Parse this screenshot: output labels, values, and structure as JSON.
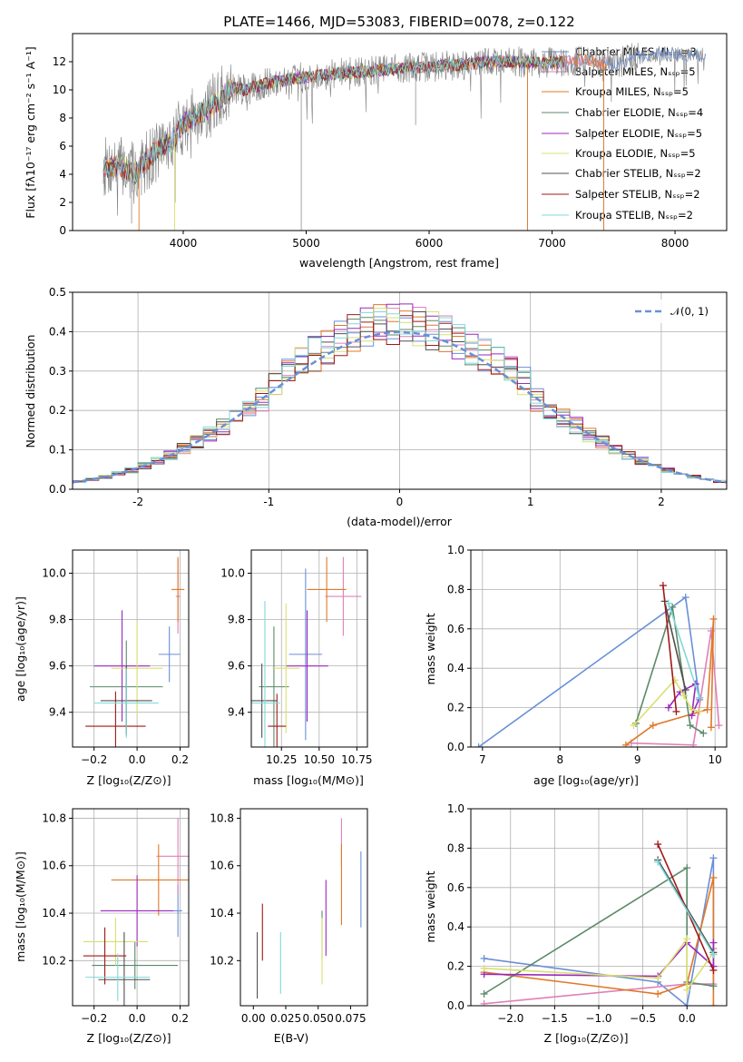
{
  "colors": {
    "chabrier_miles": "#6a8fd8",
    "salpeter_miles": "#e080b8",
    "kroupa_miles": "#e07828",
    "chabrier_elodie": "#5a8a68",
    "salpeter_elodie": "#9a28c0",
    "kroupa_elodie": "#d8e070",
    "chabrier_stelib": "#505050",
    "salpeter_stelib": "#a01818",
    "kroupa_stelib": "#80d8d8",
    "spectrum_data": "#808080",
    "normal_curve": "#6a8fd8",
    "grid": "#b0b0b0"
  },
  "chart_data": [
    {
      "id": "spectrum",
      "type": "line",
      "title": "PLATE=1466, MJD=53083, FIBERID=0078, z=0.122",
      "xlabel": "wavelength [Angstrom, rest frame]",
      "ylabel": "Flux [fλ10⁻¹⁷ erg cm⁻² s⁻¹ A⁻¹]",
      "xlim": [
        3100,
        8420
      ],
      "ylim": [
        0,
        14
      ],
      "xticks": [
        4000,
        5000,
        6000,
        7000,
        8000
      ],
      "yticks": [
        0,
        2,
        4,
        6,
        8,
        10,
        12
      ],
      "grid": false,
      "legend_placement": "right",
      "legend": [
        "Chabrier MILES, Nₛₛₚ=3",
        "Salpeter MILES, Nₛₛₚ=5",
        "Kroupa MILES, Nₛₛₚ=5",
        "Chabrier ELODIE, Nₛₛₚ=4",
        "Salpeter ELODIE, Nₛₛₚ=5",
        "Kroupa ELODIE, Nₛₛₚ=5",
        "Chabrier STELIB, Nₛₛₚ=2",
        "Salpeter STELIB, Nₛₛₚ=2",
        "Kroupa STELIB, Nₛₛₚ=2"
      ],
      "continuum": {
        "x": [
          3350,
          3500,
          3600,
          3700,
          3800,
          3900,
          4000,
          4100,
          4200,
          4300,
          4400,
          4500,
          4700,
          4900,
          5100,
          5300,
          5500,
          5700,
          5900,
          6100,
          6300,
          6500,
          6700,
          6900,
          7100,
          7300,
          7500,
          7700,
          7900,
          8100,
          8250
        ],
        "y": [
          4.5,
          4.6,
          4.0,
          5.0,
          5.8,
          6.3,
          7.6,
          8.2,
          8.6,
          9.4,
          10.1,
          10.0,
          10.5,
          10.8,
          11.0,
          11.2,
          11.3,
          11.5,
          11.6,
          11.7,
          11.8,
          12.0,
          12.0,
          11.9,
          12.0,
          12.1,
          11.8,
          12.4,
          12.6,
          12.4,
          12.5
        ]
      },
      "absorption_lines": [
        {
          "x": 3580,
          "depth_to": 0.5
        },
        {
          "x": 3660,
          "depth_to": 2.5
        },
        {
          "x": 3934,
          "depth_to": 2.0
        },
        {
          "x": 4960,
          "depth_to": 0.0
        },
        {
          "x": 5890,
          "depth_to": 7.5
        },
        {
          "x": 6800,
          "depth_to": 0.0
        },
        {
          "x": 7420,
          "depth_to": 0.0
        }
      ]
    },
    {
      "id": "residuals",
      "type": "step",
      "xlabel": "(data-model)/error",
      "ylabel": "Normed distribution",
      "xlim": [
        -2.5,
        2.5
      ],
      "ylim": [
        0,
        0.5
      ],
      "xticks": [
        -2,
        -1,
        0,
        1,
        2
      ],
      "yticks": [
        0.0,
        0.1,
        0.2,
        0.3,
        0.4,
        0.5
      ],
      "grid": true,
      "legend": [
        "𝒩(0, 1)"
      ],
      "legend_placement": "top-right",
      "bin_width": 0.1
    },
    {
      "id": "age_Z",
      "type": "errorbar",
      "xlabel": "Z [log₁₀(Z/Z⊙)]",
      "ylabel": "age  [log₁₀(age/yr)]",
      "xlim": [
        -0.3,
        0.24
      ],
      "ylim": [
        9.25,
        10.1
      ],
      "xticks": [
        -0.2,
        0.0,
        0.2
      ],
      "xticklabels": [
        "−0.2",
        "0.0",
        "0.2"
      ],
      "yticks": [
        9.4,
        9.6,
        9.8,
        10.0
      ],
      "grid": true,
      "points": [
        {
          "series": "chabrier_miles",
          "x": 0.15,
          "xerr": 0.05,
          "y": 9.65,
          "yerr": 0.12
        },
        {
          "series": "salpeter_miles",
          "x": 0.19,
          "xerr": 0.01,
          "y": 9.9,
          "yerr": 0.16
        },
        {
          "series": "kroupa_miles",
          "x": 0.19,
          "xerr": 0.03,
          "y": 9.93,
          "yerr": 0.14
        },
        {
          "series": "chabrier_elodie",
          "x": -0.05,
          "xerr": 0.17,
          "y": 9.51,
          "yerr": 0.2
        },
        {
          "series": "salpeter_elodie",
          "x": -0.07,
          "xerr": 0.13,
          "y": 9.6,
          "yerr": 0.24
        },
        {
          "series": "kroupa_elodie",
          "x": 0.0,
          "xerr": 0.12,
          "y": 9.59,
          "yerr": 0.2
        },
        {
          "series": "chabrier_stelib",
          "x": -0.05,
          "xerr": 0.12,
          "y": 9.45,
          "yerr": 0.15
        },
        {
          "series": "salpeter_stelib",
          "x": -0.1,
          "xerr": 0.14,
          "y": 9.34,
          "yerr": 0.15
        },
        {
          "series": "kroupa_stelib",
          "x": -0.05,
          "xerr": 0.15,
          "y": 9.44,
          "yerr": 0.15
        }
      ]
    },
    {
      "id": "age_mass",
      "type": "errorbar",
      "xlabel": "mass [log₁₀(M/M⊙)]",
      "ylabel": "",
      "xlim": [
        10.05,
        10.82
      ],
      "ylim": [
        9.25,
        10.1
      ],
      "xticks": [
        10.25,
        10.5,
        10.75
      ],
      "xticklabels": [
        "10.25",
        "10.50",
        "10.75"
      ],
      "yticks": [
        9.4,
        9.6,
        9.8,
        10.0
      ],
      "grid": true,
      "points": [
        {
          "series": "chabrier_miles",
          "x": 10.41,
          "xerr": 0.11,
          "y": 9.65,
          "yerr": 0.37
        },
        {
          "series": "salpeter_miles",
          "x": 10.66,
          "xerr": 0.12,
          "y": 9.9,
          "yerr": 0.17
        },
        {
          "series": "kroupa_miles",
          "x": 10.55,
          "xerr": 0.13,
          "y": 9.93,
          "yerr": 0.14
        },
        {
          "series": "chabrier_elodie",
          "x": 10.2,
          "xerr": 0.1,
          "y": 9.51,
          "yerr": 0.26
        },
        {
          "series": "salpeter_elodie",
          "x": 10.42,
          "xerr": 0.14,
          "y": 9.6,
          "yerr": 0.24
        },
        {
          "series": "kroupa_elodie",
          "x": 10.28,
          "xerr": 0.09,
          "y": 9.59,
          "yerr": 0.28
        },
        {
          "series": "chabrier_stelib",
          "x": 10.12,
          "xerr": 0.1,
          "y": 9.45,
          "yerr": 0.16
        },
        {
          "series": "salpeter_stelib",
          "x": 10.22,
          "xerr": 0.06,
          "y": 9.34,
          "yerr": 0.14
        },
        {
          "series": "kroupa_stelib",
          "x": 10.14,
          "xerr": 0.1,
          "y": 9.44,
          "yerr": 0.44
        }
      ]
    },
    {
      "id": "weight_age",
      "type": "line",
      "xlabel": "age  [log₁₀(age/yr)]",
      "ylabel": "mass weight",
      "xlim": [
        6.85,
        10.15
      ],
      "ylim": [
        0,
        1
      ],
      "xticks": [
        7,
        8,
        9,
        10
      ],
      "yticks": [
        0.0,
        0.2,
        0.4,
        0.6,
        0.8,
        1.0
      ],
      "grid": true,
      "series": [
        {
          "series": "chabrier_miles",
          "x": [
            6.95,
            9.62,
            9.8
          ],
          "y": [
            0.0,
            0.76,
            0.24
          ]
        },
        {
          "series": "salpeter_miles",
          "x": [
            8.92,
            9.72,
            9.95,
            10.05
          ],
          "y": [
            0.02,
            0.01,
            0.59,
            0.11
          ]
        },
        {
          "series": "kroupa_miles",
          "x": [
            8.85,
            9.2,
            9.9,
            9.98,
            9.95
          ],
          "y": [
            0.01,
            0.11,
            0.19,
            0.65,
            0.1
          ]
        },
        {
          "series": "chabrier_elodie",
          "x": [
            8.98,
            9.45,
            9.68,
            9.85
          ],
          "y": [
            0.12,
            0.71,
            0.11,
            0.07
          ]
        },
        {
          "series": "salpeter_elodie",
          "x": [
            9.4,
            9.55,
            9.75,
            9.7,
            9.8
          ],
          "y": [
            0.2,
            0.28,
            0.32,
            0.16,
            0.25
          ]
        },
        {
          "series": "kroupa_elodie",
          "x": [
            8.95,
            9.48,
            9.6,
            9.7,
            9.8
          ],
          "y": [
            0.11,
            0.34,
            0.26,
            0.19,
            0.18
          ]
        },
        {
          "series": "chabrier_stelib",
          "x": [
            9.35,
            9.62
          ],
          "y": [
            0.74,
            0.29
          ]
        },
        {
          "series": "salpeter_stelib",
          "x": [
            9.33,
            9.5
          ],
          "y": [
            0.82,
            0.18
          ]
        },
        {
          "series": "kroupa_stelib",
          "x": [
            9.4,
            9.8
          ],
          "y": [
            0.73,
            0.25
          ]
        }
      ]
    },
    {
      "id": "mass_Z",
      "type": "errorbar",
      "xlabel": "Z [log₁₀(Z/Z⊙)]",
      "ylabel": "mass [log₁₀(M/M⊙)]",
      "xlim": [
        -0.3,
        0.24
      ],
      "ylim": [
        10.01,
        10.84
      ],
      "xticks": [
        -0.2,
        0.0,
        0.2
      ],
      "xticklabels": [
        "−0.2",
        "0.0",
        "0.2"
      ],
      "yticks": [
        10.2,
        10.4,
        10.6,
        10.8
      ],
      "grid": true,
      "points": [
        {
          "series": "chabrier_miles",
          "x": 0.19,
          "xerr": 0.02,
          "y": 10.41,
          "yerr": 0.11
        },
        {
          "series": "salpeter_miles",
          "x": 0.19,
          "xerr": 0.1,
          "y": 10.64,
          "yerr": 0.16
        },
        {
          "series": "kroupa_miles",
          "x": 0.1,
          "xerr": 0.22,
          "y": 10.54,
          "yerr": 0.15
        },
        {
          "series": "chabrier_elodie",
          "x": -0.01,
          "xerr": 0.2,
          "y": 10.18,
          "yerr": 0.1
        },
        {
          "series": "salpeter_elodie",
          "x": 0.0,
          "xerr": 0.17,
          "y": 10.41,
          "yerr": 0.15
        },
        {
          "series": "kroupa_elodie",
          "x": -0.1,
          "xerr": 0.15,
          "y": 10.28,
          "yerr": 0.1
        },
        {
          "series": "chabrier_stelib",
          "x": -0.06,
          "xerr": 0.12,
          "y": 10.12,
          "yerr": 0.2
        },
        {
          "series": "salpeter_stelib",
          "x": -0.15,
          "xerr": 0.1,
          "y": 10.22,
          "yerr": 0.12
        },
        {
          "series": "kroupa_stelib",
          "x": -0.09,
          "xerr": 0.15,
          "y": 10.13,
          "yerr": 0.1
        }
      ]
    },
    {
      "id": "mass_EBV",
      "type": "errorbar",
      "xlabel": "E(B-V)",
      "ylabel": "",
      "xlim": [
        -0.01,
        0.088
      ],
      "ylim": [
        10.01,
        10.84
      ],
      "xticks": [
        0.0,
        0.025,
        0.05,
        0.075
      ],
      "xticklabels": [
        "0.00",
        "0.025",
        "0.050",
        "0.075"
      ],
      "yticks": [
        10.2,
        10.4,
        10.6,
        10.8
      ],
      "grid": false,
      "points": [
        {
          "series": "chabrier_miles",
          "x": 0.083,
          "xerr": 0.0,
          "y": 10.5,
          "yerr": 0.16
        },
        {
          "series": "salpeter_miles",
          "x": 0.068,
          "xerr": 0.0,
          "y": 10.7,
          "yerr": 0.1
        },
        {
          "series": "kroupa_miles",
          "x": 0.068,
          "xerr": 0.0,
          "y": 10.52,
          "yerr": 0.17
        },
        {
          "series": "chabrier_elodie",
          "x": 0.053,
          "xerr": 0.0,
          "y": 10.31,
          "yerr": 0.1
        },
        {
          "series": "salpeter_elodie",
          "x": 0.056,
          "xerr": 0.0,
          "y": 10.38,
          "yerr": 0.16
        },
        {
          "series": "kroupa_elodie",
          "x": 0.053,
          "xerr": 0.0,
          "y": 10.24,
          "yerr": 0.14
        },
        {
          "series": "chabrier_stelib",
          "x": 0.003,
          "xerr": 0.0,
          "y": 10.18,
          "yerr": 0.14
        },
        {
          "series": "salpeter_stelib",
          "x": 0.007,
          "xerr": 0.0,
          "y": 10.32,
          "yerr": 0.12
        },
        {
          "series": "kroupa_stelib",
          "x": 0.021,
          "xerr": 0.0,
          "y": 10.19,
          "yerr": 0.13
        }
      ]
    },
    {
      "id": "weight_Z",
      "type": "line",
      "xlabel": "Z [log₁₀(Z/Z⊙)]",
      "ylabel": "mass weight",
      "xlim": [
        -2.45,
        0.45
      ],
      "ylim": [
        0,
        1
      ],
      "xticks": [
        -2.0,
        -1.5,
        -1.0,
        -0.5,
        0.0
      ],
      "xticklabels": [
        "−2.0",
        "−1.5",
        "−1.0",
        "−0.5",
        "0.0"
      ],
      "yticks": [
        0.0,
        0.2,
        0.4,
        0.6,
        0.8,
        1.0
      ],
      "grid": true,
      "series": [
        {
          "series": "chabrier_miles",
          "x": [
            -2.3,
            -0.33,
            0.0,
            0.3,
            0.3
          ],
          "y": [
            0.24,
            0.12,
            0.0,
            0.75,
            0.27
          ]
        },
        {
          "series": "salpeter_miles",
          "x": [
            -2.3,
            0.0,
            0.3,
            0.3
          ],
          "y": [
            0.01,
            0.11,
            0.11,
            0.29
          ]
        },
        {
          "series": "kroupa_miles",
          "x": [
            -2.3,
            -0.33,
            0.0,
            0.3,
            0.3
          ],
          "y": [
            0.17,
            0.06,
            0.11,
            0.65,
            0.0
          ]
        },
        {
          "series": "chabrier_elodie",
          "x": [
            -2.3,
            0.0,
            0.0,
            0.3
          ],
          "y": [
            0.06,
            0.7,
            0.12,
            0.1
          ]
        },
        {
          "series": "salpeter_elodie",
          "x": [
            -2.3,
            -0.33,
            0.0,
            0.3,
            0.3
          ],
          "y": [
            0.16,
            0.15,
            0.32,
            0.2,
            0.32
          ]
        },
        {
          "series": "kroupa_elodie",
          "x": [
            -2.3,
            -0.33,
            0.0,
            0.0,
            0.3
          ],
          "y": [
            0.19,
            0.14,
            0.34,
            0.08,
            0.27
          ]
        },
        {
          "series": "chabrier_stelib",
          "x": [
            -0.33,
            0.3
          ],
          "y": [
            0.74,
            0.27
          ]
        },
        {
          "series": "salpeter_stelib",
          "x": [
            -0.33,
            0.3
          ],
          "y": [
            0.82,
            0.18
          ]
        },
        {
          "series": "kroupa_stelib",
          "x": [
            -0.33,
            0.3
          ],
          "y": [
            0.73,
            0.26
          ]
        }
      ]
    }
  ]
}
